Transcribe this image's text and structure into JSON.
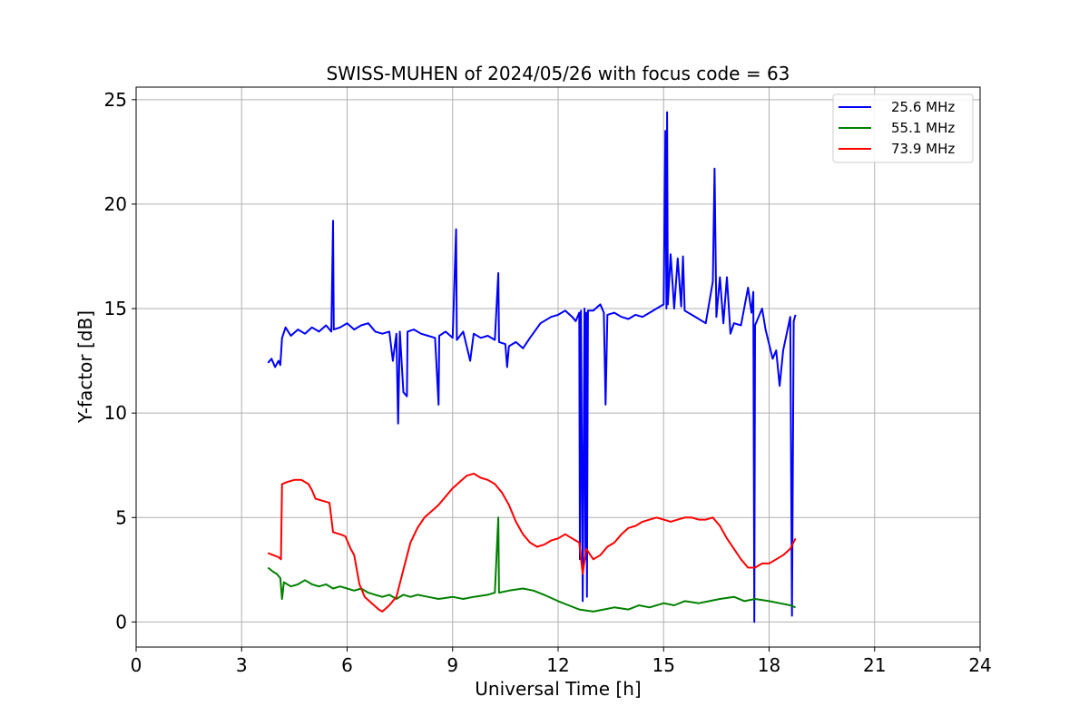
{
  "chart_data": {
    "type": "line",
    "title": "SWISS-MUHEN of 2024/05/26 with focus code = 63",
    "xlabel": "Universal Time [h]",
    "ylabel": "Y-factor [dB]",
    "xlim": [
      0,
      24
    ],
    "ylim": [
      -1.2,
      25.6
    ],
    "xticks": [
      0,
      3,
      6,
      9,
      12,
      15,
      18,
      21,
      24
    ],
    "yticks": [
      0,
      5,
      10,
      15,
      20,
      25
    ],
    "grid": true,
    "legend_position": "upper-right",
    "series": [
      {
        "name": "25.6 MHz",
        "color": "#0000ff",
        "points": [
          [
            3.75,
            12.4
          ],
          [
            3.85,
            12.6
          ],
          [
            3.95,
            12.2
          ],
          [
            4.05,
            12.5
          ],
          [
            4.1,
            12.3
          ],
          [
            4.15,
            13.6
          ],
          [
            4.25,
            14.1
          ],
          [
            4.4,
            13.7
          ],
          [
            4.6,
            14.0
          ],
          [
            4.8,
            13.8
          ],
          [
            5.0,
            14.1
          ],
          [
            5.2,
            13.9
          ],
          [
            5.4,
            14.2
          ],
          [
            5.55,
            13.9
          ],
          [
            5.6,
            19.2
          ],
          [
            5.62,
            14.0
          ],
          [
            5.8,
            14.1
          ],
          [
            6.0,
            14.3
          ],
          [
            6.2,
            14.0
          ],
          [
            6.4,
            14.2
          ],
          [
            6.6,
            14.3
          ],
          [
            6.8,
            13.9
          ],
          [
            7.0,
            13.8
          ],
          [
            7.2,
            13.9
          ],
          [
            7.3,
            12.5
          ],
          [
            7.4,
            13.8
          ],
          [
            7.45,
            9.5
          ],
          [
            7.5,
            13.9
          ],
          [
            7.6,
            11.0
          ],
          [
            7.7,
            10.8
          ],
          [
            7.72,
            13.9
          ],
          [
            7.9,
            14.0
          ],
          [
            8.1,
            13.8
          ],
          [
            8.3,
            13.7
          ],
          [
            8.5,
            13.6
          ],
          [
            8.6,
            10.4
          ],
          [
            8.62,
            13.7
          ],
          [
            8.8,
            13.9
          ],
          [
            9.0,
            13.6
          ],
          [
            9.1,
            18.8
          ],
          [
            9.12,
            13.5
          ],
          [
            9.3,
            13.9
          ],
          [
            9.5,
            12.5
          ],
          [
            9.6,
            13.8
          ],
          [
            9.8,
            13.6
          ],
          [
            10.0,
            13.7
          ],
          [
            10.2,
            13.5
          ],
          [
            10.3,
            16.7
          ],
          [
            10.32,
            13.4
          ],
          [
            10.5,
            13.3
          ],
          [
            10.55,
            12.2
          ],
          [
            10.6,
            13.2
          ],
          [
            10.8,
            13.4
          ],
          [
            11.0,
            13.1
          ],
          [
            11.2,
            13.6
          ],
          [
            11.5,
            14.3
          ],
          [
            11.8,
            14.6
          ],
          [
            12.0,
            14.7
          ],
          [
            12.2,
            14.9
          ],
          [
            12.4,
            14.6
          ],
          [
            12.5,
            14.4
          ],
          [
            12.6,
            14.8
          ],
          [
            12.62,
            3.0
          ],
          [
            12.65,
            14.9
          ],
          [
            12.7,
            1.0
          ],
          [
            12.75,
            15.0
          ],
          [
            12.78,
            3.0
          ],
          [
            12.8,
            14.8
          ],
          [
            12.82,
            1.2
          ],
          [
            12.85,
            14.9
          ],
          [
            13.0,
            14.9
          ],
          [
            13.2,
            15.2
          ],
          [
            13.3,
            14.8
          ],
          [
            13.35,
            10.4
          ],
          [
            13.4,
            14.7
          ],
          [
            13.6,
            14.8
          ],
          [
            13.8,
            14.6
          ],
          [
            14.0,
            14.5
          ],
          [
            14.2,
            14.7
          ],
          [
            14.4,
            14.6
          ],
          [
            14.6,
            14.8
          ],
          [
            14.8,
            15.0
          ],
          [
            15.0,
            15.2
          ],
          [
            15.05,
            23.5
          ],
          [
            15.08,
            15.0
          ],
          [
            15.1,
            24.4
          ],
          [
            15.12,
            15.2
          ],
          [
            15.2,
            17.6
          ],
          [
            15.3,
            15.0
          ],
          [
            15.4,
            17.4
          ],
          [
            15.5,
            15.1
          ],
          [
            15.55,
            17.5
          ],
          [
            15.6,
            14.9
          ],
          [
            15.8,
            14.7
          ],
          [
            16.0,
            14.5
          ],
          [
            16.2,
            14.3
          ],
          [
            16.4,
            16.3
          ],
          [
            16.45,
            21.7
          ],
          [
            16.5,
            14.6
          ],
          [
            16.6,
            16.5
          ],
          [
            16.7,
            14.3
          ],
          [
            16.8,
            16.5
          ],
          [
            16.9,
            13.8
          ],
          [
            17.0,
            14.3
          ],
          [
            17.2,
            14.2
          ],
          [
            17.4,
            16.0
          ],
          [
            17.5,
            14.8
          ],
          [
            17.55,
            15.8
          ],
          [
            17.58,
            0.0
          ],
          [
            17.6,
            14.2
          ],
          [
            17.8,
            15.0
          ],
          [
            17.9,
            14.0
          ],
          [
            18.0,
            13.3
          ],
          [
            18.1,
            12.6
          ],
          [
            18.2,
            13.0
          ],
          [
            18.3,
            11.3
          ],
          [
            18.4,
            13.0
          ],
          [
            18.5,
            13.8
          ],
          [
            18.6,
            14.6
          ],
          [
            18.65,
            0.3
          ],
          [
            18.7,
            14.4
          ],
          [
            18.75,
            14.7
          ]
        ]
      },
      {
        "name": "55.1 MHz",
        "color": "#008000",
        "points": [
          [
            3.75,
            2.6
          ],
          [
            3.9,
            2.4
          ],
          [
            4.0,
            2.3
          ],
          [
            4.1,
            2.1
          ],
          [
            4.15,
            1.1
          ],
          [
            4.2,
            1.9
          ],
          [
            4.4,
            1.7
          ],
          [
            4.6,
            1.8
          ],
          [
            4.8,
            2.0
          ],
          [
            5.0,
            1.8
          ],
          [
            5.2,
            1.7
          ],
          [
            5.4,
            1.8
          ],
          [
            5.6,
            1.6
          ],
          [
            5.8,
            1.7
          ],
          [
            6.0,
            1.6
          ],
          [
            6.2,
            1.5
          ],
          [
            6.4,
            1.6
          ],
          [
            6.6,
            1.4
          ],
          [
            6.8,
            1.3
          ],
          [
            7.0,
            1.2
          ],
          [
            7.2,
            1.3
          ],
          [
            7.4,
            1.1
          ],
          [
            7.6,
            1.3
          ],
          [
            7.8,
            1.2
          ],
          [
            8.0,
            1.3
          ],
          [
            8.3,
            1.2
          ],
          [
            8.6,
            1.1
          ],
          [
            9.0,
            1.2
          ],
          [
            9.3,
            1.1
          ],
          [
            9.6,
            1.2
          ],
          [
            10.0,
            1.3
          ],
          [
            10.2,
            1.4
          ],
          [
            10.3,
            5.0
          ],
          [
            10.32,
            1.4
          ],
          [
            10.6,
            1.5
          ],
          [
            11.0,
            1.6
          ],
          [
            11.3,
            1.5
          ],
          [
            11.6,
            1.3
          ],
          [
            12.0,
            1.0
          ],
          [
            12.3,
            0.8
          ],
          [
            12.6,
            0.6
          ],
          [
            13.0,
            0.5
          ],
          [
            13.3,
            0.6
          ],
          [
            13.6,
            0.7
          ],
          [
            14.0,
            0.6
          ],
          [
            14.3,
            0.8
          ],
          [
            14.6,
            0.7
          ],
          [
            15.0,
            0.9
          ],
          [
            15.3,
            0.8
          ],
          [
            15.6,
            1.0
          ],
          [
            16.0,
            0.9
          ],
          [
            16.3,
            1.0
          ],
          [
            16.6,
            1.1
          ],
          [
            17.0,
            1.2
          ],
          [
            17.3,
            1.0
          ],
          [
            17.6,
            1.1
          ],
          [
            18.0,
            1.0
          ],
          [
            18.3,
            0.9
          ],
          [
            18.6,
            0.8
          ],
          [
            18.75,
            0.7
          ]
        ]
      },
      {
        "name": "73.9 MHz",
        "color": "#ff0000",
        "points": [
          [
            3.75,
            3.3
          ],
          [
            3.9,
            3.2
          ],
          [
            4.05,
            3.1
          ],
          [
            4.12,
            3.0
          ],
          [
            4.15,
            6.6
          ],
          [
            4.3,
            6.7
          ],
          [
            4.5,
            6.8
          ],
          [
            4.7,
            6.8
          ],
          [
            4.9,
            6.6
          ],
          [
            5.0,
            6.3
          ],
          [
            5.1,
            5.9
          ],
          [
            5.3,
            5.8
          ],
          [
            5.5,
            5.7
          ],
          [
            5.6,
            4.3
          ],
          [
            5.8,
            4.2
          ],
          [
            5.95,
            4.1
          ],
          [
            6.1,
            3.5
          ],
          [
            6.2,
            3.2
          ],
          [
            6.35,
            1.8
          ],
          [
            6.5,
            1.2
          ],
          [
            6.7,
            0.9
          ],
          [
            6.9,
            0.6
          ],
          [
            7.0,
            0.5
          ],
          [
            7.2,
            0.8
          ],
          [
            7.4,
            1.2
          ],
          [
            7.6,
            2.5
          ],
          [
            7.8,
            3.8
          ],
          [
            8.0,
            4.5
          ],
          [
            8.2,
            5.0
          ],
          [
            8.4,
            5.3
          ],
          [
            8.6,
            5.6
          ],
          [
            8.8,
            6.0
          ],
          [
            9.0,
            6.4
          ],
          [
            9.2,
            6.7
          ],
          [
            9.4,
            7.0
          ],
          [
            9.6,
            7.1
          ],
          [
            9.8,
            6.9
          ],
          [
            10.0,
            6.8
          ],
          [
            10.2,
            6.6
          ],
          [
            10.4,
            6.2
          ],
          [
            10.6,
            5.6
          ],
          [
            10.8,
            4.8
          ],
          [
            11.0,
            4.2
          ],
          [
            11.2,
            3.8
          ],
          [
            11.4,
            3.6
          ],
          [
            11.6,
            3.7
          ],
          [
            11.8,
            3.9
          ],
          [
            12.0,
            4.0
          ],
          [
            12.2,
            4.2
          ],
          [
            12.4,
            4.0
          ],
          [
            12.6,
            3.8
          ],
          [
            12.7,
            2.3
          ],
          [
            12.8,
            3.5
          ],
          [
            13.0,
            3.0
          ],
          [
            13.2,
            3.2
          ],
          [
            13.4,
            3.6
          ],
          [
            13.6,
            3.8
          ],
          [
            13.8,
            4.2
          ],
          [
            14.0,
            4.5
          ],
          [
            14.2,
            4.6
          ],
          [
            14.4,
            4.8
          ],
          [
            14.6,
            4.9
          ],
          [
            14.8,
            5.0
          ],
          [
            15.0,
            4.9
          ],
          [
            15.2,
            4.8
          ],
          [
            15.4,
            4.9
          ],
          [
            15.6,
            5.0
          ],
          [
            15.8,
            5.0
          ],
          [
            16.0,
            4.9
          ],
          [
            16.2,
            4.9
          ],
          [
            16.4,
            5.0
          ],
          [
            16.6,
            4.6
          ],
          [
            16.8,
            4.0
          ],
          [
            17.0,
            3.5
          ],
          [
            17.2,
            3.0
          ],
          [
            17.4,
            2.6
          ],
          [
            17.6,
            2.6
          ],
          [
            17.8,
            2.8
          ],
          [
            18.0,
            2.8
          ],
          [
            18.2,
            3.0
          ],
          [
            18.4,
            3.2
          ],
          [
            18.6,
            3.5
          ],
          [
            18.75,
            4.0
          ]
        ]
      }
    ]
  }
}
